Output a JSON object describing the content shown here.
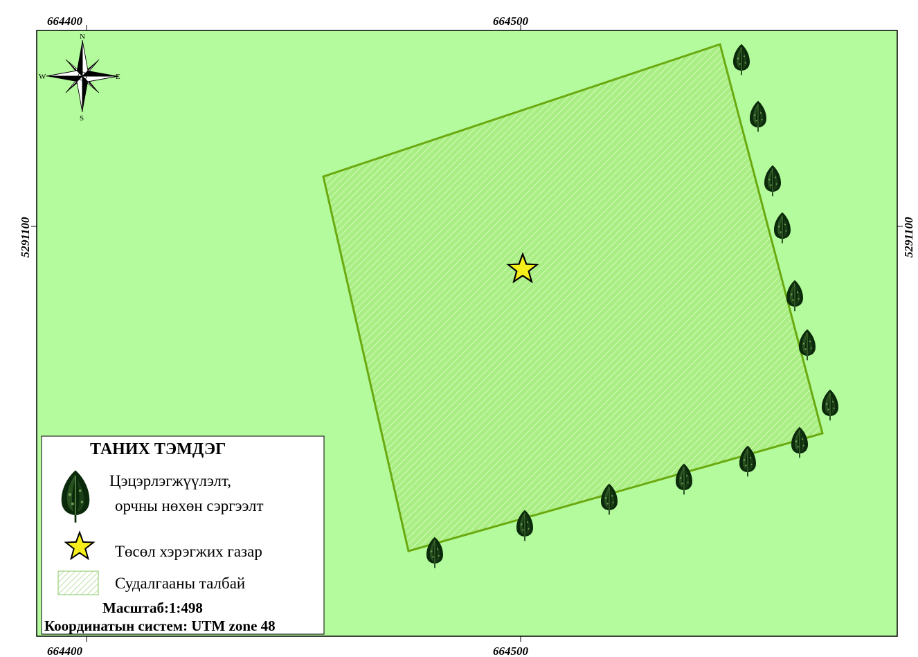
{
  "coordinates": {
    "top_left": "664400",
    "top_center": "664500",
    "bottom_left": "664400",
    "bottom_center": "664500",
    "left_middle": "5291100",
    "right_middle": "5291100"
  },
  "compass": {
    "n": "N",
    "s": "S",
    "e": "E",
    "w": "W"
  },
  "legend": {
    "title": "ТАНИХ ТЭМДЭГ",
    "tree_line1": "Цэцэрлэгжүүлэлт,",
    "tree_line2": "орчны нөхөн сэргээлт",
    "star_label": "Төсөл хэрэгжих газар",
    "area_label": "Судалгааны талбай",
    "scale": "Масштаб:1:498",
    "crs": "Координатын систем: UTM zone  48"
  },
  "colors": {
    "background": "#b4fb9d",
    "area_fill": "#a9ee84",
    "area_outline": "#6aaa10",
    "hatch": "#d4fcb8",
    "star_fill": "#f6ee1a",
    "tree_dark": "#0b2a0b"
  },
  "icons": {
    "compass": "compass-rose-icon",
    "tree": "tree-icon",
    "star": "star-icon"
  }
}
